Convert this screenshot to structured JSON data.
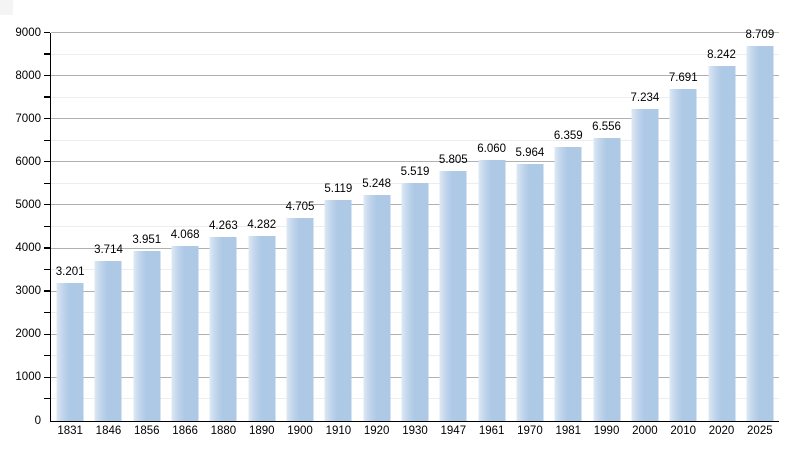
{
  "figure": {
    "background": "#ffffff",
    "corner_artifact_color": "#f4f4f5"
  },
  "chart_data": {
    "type": "bar",
    "title": "",
    "xlabel": "",
    "ylabel": "",
    "categories": [
      "1831",
      "1846",
      "1856",
      "1866",
      "1880",
      "1890",
      "1900",
      "1910",
      "1920",
      "1930",
      "1947",
      "1961",
      "1970",
      "1981",
      "1990",
      "2000",
      "2010",
      "2020",
      "2025"
    ],
    "values": [
      3201,
      3714,
      3951,
      4068,
      4263,
      4282,
      4705,
      5119,
      5248,
      5519,
      5805,
      6060,
      5964,
      6359,
      6556,
      7234,
      7691,
      8242,
      8709
    ],
    "bar_labels": [
      "3.201",
      "3.714",
      "3.951",
      "4.068",
      "4.263",
      "4.282",
      "4.705",
      "5.119",
      "5.248",
      "5.519",
      "5.805",
      "6.060",
      "5.964",
      "6.359",
      "6.556",
      "7.234",
      "7.691",
      "8.242",
      "8.709"
    ],
    "ylim": [
      0,
      9000
    ],
    "yticks": {
      "major_step": 1000,
      "minor_step": 500,
      "labels": [
        "0",
        "1000",
        "2000",
        "3000",
        "4000",
        "5000",
        "6000",
        "7000",
        "8000",
        "9000"
      ]
    },
    "grid": "horizontal, major and minor lines",
    "legend": "none",
    "colors": {
      "bar_fill": "#adc9e6",
      "bar_fill_mid": "#c3d6ec",
      "bar_fill_light": "#dde9f5",
      "grid_major": "#b0b0b0",
      "grid_minor": "#ededed",
      "axis": "#000000",
      "text": "#000000"
    }
  }
}
